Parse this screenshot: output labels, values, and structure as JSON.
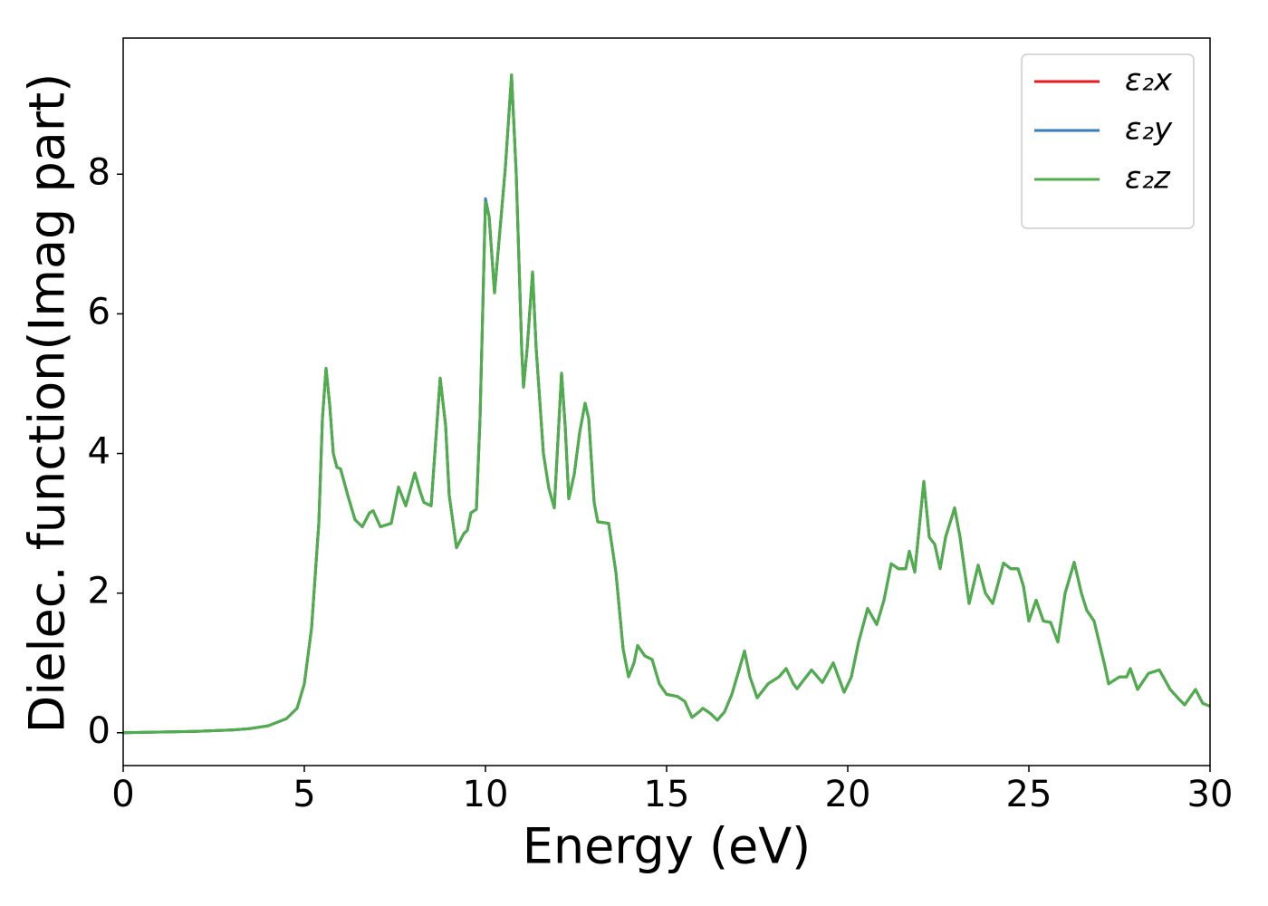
{
  "chart_data": {
    "type": "line",
    "xlabel": "Energy (eV)",
    "ylabel": "Dielec. function(Imag part)",
    "x": [
      0,
      1,
      2,
      3,
      3.5,
      4,
      4.5,
      4.8,
      5.0,
      5.2,
      5.4,
      5.5,
      5.6,
      5.7,
      5.8,
      5.9,
      6.0,
      6.2,
      6.4,
      6.6,
      6.8,
      6.9,
      7.1,
      7.4,
      7.6,
      7.8,
      8.05,
      8.2,
      8.3,
      8.5,
      8.75,
      8.9,
      9.0,
      9.2,
      9.4,
      9.5,
      9.6,
      9.75,
      9.85,
      10.0,
      10.1,
      10.25,
      10.4,
      10.55,
      10.72,
      10.85,
      11.0,
      11.05,
      11.15,
      11.3,
      11.4,
      11.6,
      11.75,
      11.9,
      12.1,
      12.2,
      12.3,
      12.45,
      12.6,
      12.75,
      12.85,
      13.0,
      13.1,
      13.4,
      13.6,
      13.8,
      13.95,
      14.1,
      14.2,
      14.4,
      14.6,
      14.8,
      15.0,
      15.3,
      15.5,
      15.7,
      15.9,
      16.0,
      16.2,
      16.4,
      16.6,
      16.8,
      17.0,
      17.15,
      17.3,
      17.5,
      17.8,
      18.1,
      18.3,
      18.5,
      18.6,
      19.0,
      19.3,
      19.6,
      19.9,
      20.1,
      20.3,
      20.55,
      20.8,
      21.0,
      21.2,
      21.4,
      21.6,
      21.7,
      21.85,
      22.1,
      22.25,
      22.4,
      22.55,
      22.7,
      22.95,
      23.1,
      23.35,
      23.6,
      23.8,
      24.0,
      24.3,
      24.5,
      24.7,
      24.85,
      25.0,
      25.2,
      25.4,
      25.6,
      25.8,
      26.0,
      26.25,
      26.45,
      26.6,
      26.8,
      27.1,
      27.2,
      27.5,
      27.7,
      27.8,
      28.0,
      28.3,
      28.6,
      28.9,
      29.2,
      29.3,
      29.6,
      29.8,
      30.0
    ],
    "series": [
      {
        "name": "ε₂x",
        "color": "#e41a1c",
        "values": [
          0,
          0.01,
          0.02,
          0.04,
          0.06,
          0.1,
          0.2,
          0.35,
          0.7,
          1.5,
          3.0,
          4.5,
          5.22,
          4.7,
          4.0,
          3.8,
          3.78,
          3.4,
          3.05,
          2.95,
          3.15,
          3.18,
          2.95,
          3.0,
          3.52,
          3.25,
          3.72,
          3.45,
          3.3,
          3.25,
          5.08,
          4.4,
          3.4,
          2.65,
          2.85,
          2.9,
          3.15,
          3.2,
          4.5,
          7.6,
          7.4,
          6.3,
          7.2,
          8.1,
          9.42,
          8.0,
          5.5,
          4.95,
          5.5,
          6.6,
          5.5,
          4.0,
          3.5,
          3.22,
          5.15,
          4.4,
          3.35,
          3.7,
          4.3,
          4.72,
          4.5,
          3.3,
          3.02,
          3.0,
          2.3,
          1.2,
          0.8,
          1.0,
          1.25,
          1.1,
          1.05,
          0.7,
          0.55,
          0.52,
          0.45,
          0.22,
          0.3,
          0.35,
          0.28,
          0.18,
          0.3,
          0.55,
          0.9,
          1.17,
          0.8,
          0.5,
          0.7,
          0.8,
          0.92,
          0.7,
          0.63,
          0.9,
          0.72,
          1.0,
          0.58,
          0.8,
          1.3,
          1.78,
          1.55,
          1.9,
          2.42,
          2.35,
          2.35,
          2.6,
          2.3,
          3.6,
          2.8,
          2.7,
          2.35,
          2.8,
          3.22,
          2.8,
          1.85,
          2.4,
          2.0,
          1.85,
          2.43,
          2.35,
          2.35,
          2.1,
          1.6,
          1.9,
          1.6,
          1.58,
          1.3,
          2.0,
          2.44,
          2.0,
          1.75,
          1.6,
          0.95,
          0.7,
          0.8,
          0.8,
          0.92,
          0.62,
          0.85,
          0.9,
          0.62,
          0.45,
          0.4,
          0.62,
          0.42,
          0.38
        ]
      },
      {
        "name": "ε₂y",
        "color": "#377eb8",
        "values": [
          0,
          0.01,
          0.02,
          0.04,
          0.06,
          0.1,
          0.2,
          0.35,
          0.7,
          1.5,
          3.0,
          4.5,
          5.22,
          4.7,
          4.0,
          3.8,
          3.78,
          3.4,
          3.05,
          2.95,
          3.15,
          3.18,
          2.95,
          3.0,
          3.52,
          3.25,
          3.72,
          3.45,
          3.3,
          3.25,
          5.08,
          4.4,
          3.4,
          2.65,
          2.85,
          2.9,
          3.15,
          3.2,
          4.5,
          7.65,
          7.4,
          6.3,
          7.2,
          8.1,
          9.42,
          8.0,
          5.5,
          4.95,
          5.5,
          6.6,
          5.5,
          4.0,
          3.5,
          3.22,
          5.15,
          4.4,
          3.35,
          3.7,
          4.3,
          4.72,
          4.5,
          3.3,
          3.02,
          3.0,
          2.3,
          1.2,
          0.8,
          1.0,
          1.25,
          1.1,
          1.05,
          0.7,
          0.55,
          0.52,
          0.45,
          0.22,
          0.3,
          0.35,
          0.28,
          0.18,
          0.3,
          0.55,
          0.9,
          1.17,
          0.8,
          0.5,
          0.7,
          0.8,
          0.92,
          0.7,
          0.63,
          0.9,
          0.72,
          1.0,
          0.58,
          0.8,
          1.3,
          1.78,
          1.55,
          1.9,
          2.42,
          2.35,
          2.35,
          2.6,
          2.3,
          3.6,
          2.8,
          2.7,
          2.35,
          2.8,
          3.22,
          2.8,
          1.85,
          2.4,
          2.0,
          1.85,
          2.43,
          2.35,
          2.35,
          2.1,
          1.6,
          1.9,
          1.6,
          1.58,
          1.3,
          2.0,
          2.44,
          2.0,
          1.75,
          1.6,
          0.95,
          0.7,
          0.8,
          0.8,
          0.92,
          0.62,
          0.85,
          0.9,
          0.62,
          0.45,
          0.4,
          0.62,
          0.42,
          0.38
        ]
      },
      {
        "name": "ε₂z",
        "color": "#4daf4a",
        "values": [
          0,
          0.01,
          0.02,
          0.04,
          0.06,
          0.1,
          0.2,
          0.35,
          0.7,
          1.5,
          3.0,
          4.5,
          5.22,
          4.7,
          4.0,
          3.8,
          3.78,
          3.4,
          3.05,
          2.95,
          3.15,
          3.18,
          2.95,
          3.0,
          3.52,
          3.25,
          3.72,
          3.45,
          3.3,
          3.25,
          5.08,
          4.4,
          3.4,
          2.65,
          2.85,
          2.9,
          3.15,
          3.2,
          4.5,
          7.6,
          7.4,
          6.3,
          7.2,
          8.1,
          9.42,
          8.0,
          5.5,
          4.95,
          5.5,
          6.6,
          5.5,
          4.0,
          3.5,
          3.22,
          5.15,
          4.4,
          3.35,
          3.7,
          4.3,
          4.72,
          4.5,
          3.3,
          3.02,
          3.0,
          2.3,
          1.2,
          0.8,
          1.0,
          1.25,
          1.1,
          1.05,
          0.7,
          0.55,
          0.52,
          0.45,
          0.22,
          0.3,
          0.35,
          0.28,
          0.18,
          0.3,
          0.55,
          0.9,
          1.17,
          0.8,
          0.5,
          0.7,
          0.8,
          0.92,
          0.7,
          0.63,
          0.9,
          0.72,
          1.0,
          0.58,
          0.8,
          1.3,
          1.78,
          1.55,
          1.9,
          2.42,
          2.35,
          2.35,
          2.6,
          2.3,
          3.6,
          2.8,
          2.7,
          2.35,
          2.8,
          3.22,
          2.8,
          1.85,
          2.4,
          2.0,
          1.85,
          2.43,
          2.35,
          2.35,
          2.1,
          1.6,
          1.9,
          1.6,
          1.58,
          1.3,
          2.0,
          2.44,
          2.0,
          1.75,
          1.6,
          0.95,
          0.7,
          0.8,
          0.8,
          0.92,
          0.62,
          0.85,
          0.9,
          0.62,
          0.45,
          0.4,
          0.62,
          0.42,
          0.38
        ]
      }
    ],
    "xlim": [
      0,
      30
    ],
    "xticks": [
      0,
      5,
      10,
      15,
      20,
      25,
      30
    ],
    "ylim": [
      -0.47,
      9.95
    ],
    "yticks": [
      0,
      2,
      4,
      6,
      8
    ],
    "grid": false,
    "legend": "upper right"
  }
}
